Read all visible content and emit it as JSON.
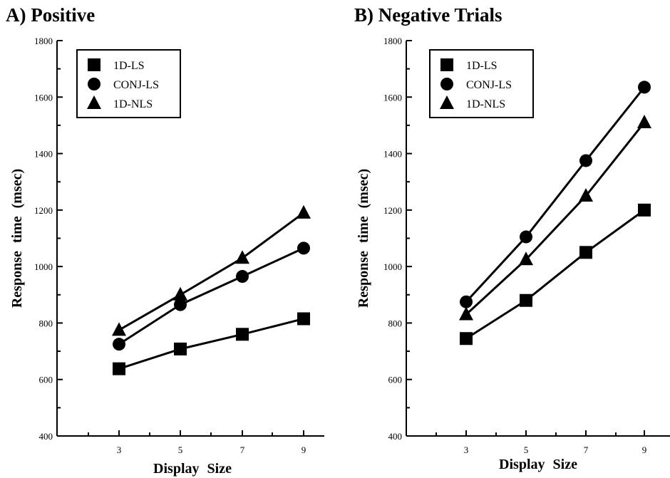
{
  "chart_data": [
    {
      "type": "line",
      "panel_title": "A) Positive",
      "xlabel": "Display Size",
      "ylabel": "Response time (msec)",
      "x": [
        3,
        5,
        7,
        9
      ],
      "xticks": [
        "3",
        "5",
        "7",
        "9"
      ],
      "ylim": [
        400,
        1800
      ],
      "yticks": [
        "400",
        "600",
        "800",
        "1000",
        "1200",
        "1400",
        "1600",
        "1800"
      ],
      "legend_position": "top-left",
      "grid": false,
      "series": [
        {
          "name": "1D-LS",
          "marker": "square",
          "values": [
            638,
            708,
            760,
            815
          ]
        },
        {
          "name": "CONJ-LS",
          "marker": "circle",
          "values": [
            725,
            865,
            965,
            1065
          ]
        },
        {
          "name": "1D-NLS",
          "marker": "triangle",
          "values": [
            775,
            900,
            1030,
            1190
          ]
        }
      ]
    },
    {
      "type": "line",
      "panel_title": "B) Negative Trials",
      "xlabel": "Display Size",
      "ylabel": "Response time (msec)",
      "x": [
        3,
        5,
        7,
        9
      ],
      "xticks": [
        "3",
        "5",
        "7",
        "9"
      ],
      "ylim": [
        400,
        1800
      ],
      "yticks": [
        "400",
        "600",
        "800",
        "1000",
        "1200",
        "1400",
        "1600",
        "1800"
      ],
      "legend_position": "top-left",
      "grid": false,
      "series": [
        {
          "name": "1D-LS",
          "marker": "square",
          "values": [
            745,
            880,
            1050,
            1200
          ]
        },
        {
          "name": "CONJ-LS",
          "marker": "circle",
          "values": [
            875,
            1105,
            1375,
            1635
          ]
        },
        {
          "name": "1D-NLS",
          "marker": "triangle",
          "values": [
            830,
            1025,
            1250,
            1510
          ]
        }
      ]
    }
  ]
}
